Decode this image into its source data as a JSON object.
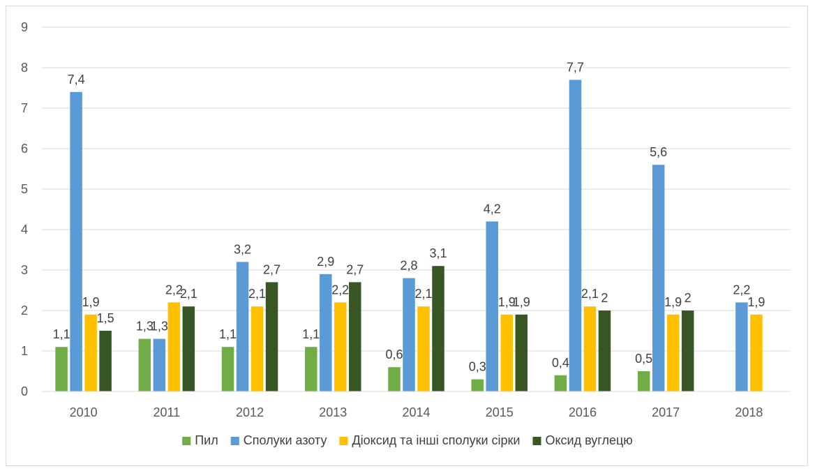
{
  "chart_data": {
    "type": "bar",
    "categories": [
      "2010",
      "2011",
      "2012",
      "2013",
      "2014",
      "2015",
      "2016",
      "2017",
      "2018"
    ],
    "series": [
      {
        "name": "Пил",
        "color": "#70ad47",
        "values": [
          1.1,
          1.3,
          1.1,
          1.1,
          0.6,
          0.3,
          0.4,
          0.5,
          null
        ],
        "labels": [
          "1,1",
          "1,3",
          "1,1",
          "1,1",
          "0,6",
          "0,3",
          "0,4",
          "0,5",
          ""
        ]
      },
      {
        "name": "Сполуки азоту",
        "color": "#5b9bd5",
        "values": [
          7.4,
          1.3,
          3.2,
          2.9,
          2.8,
          4.2,
          7.7,
          5.6,
          2.2
        ],
        "labels": [
          "7,4",
          "1,3",
          "3,2",
          "2,9",
          "2,8",
          "4,2",
          "7,7",
          "5,6",
          "2,2"
        ]
      },
      {
        "name": "Діоксид та інші сполуки сірки",
        "color": "#ffc000",
        "values": [
          1.9,
          2.2,
          2.1,
          2.2,
          2.1,
          1.9,
          2.1,
          1.9,
          1.9
        ],
        "labels": [
          "1,9",
          "2,2",
          "2,1",
          "2,2",
          "2,1",
          "1,9",
          "2,1",
          "1,9",
          "1,9"
        ]
      },
      {
        "name": "Оксид вуглецю",
        "color": "#375623",
        "values": [
          1.5,
          2.1,
          2.7,
          2.7,
          3.1,
          1.9,
          2.0,
          2.0,
          null
        ],
        "labels": [
          "1,5",
          "2,1",
          "2,7",
          "2,7",
          "3,1",
          "1,9",
          "2",
          "2",
          ""
        ]
      }
    ],
    "yticks": [
      "0",
      "1",
      "2",
      "3",
      "4",
      "5",
      "6",
      "7",
      "8",
      "9"
    ],
    "ylim": [
      0,
      9
    ],
    "grid": true,
    "legend_position": "bottom",
    "gridline_color": "#d9d9d9"
  }
}
